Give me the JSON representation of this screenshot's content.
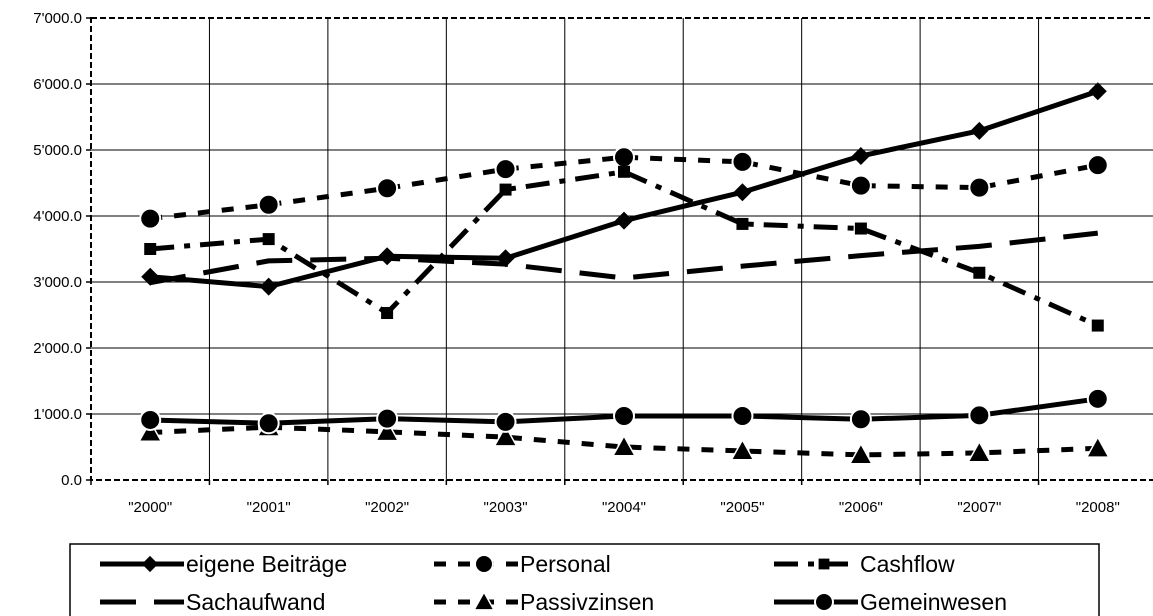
{
  "chart_data": {
    "type": "line",
    "title": "",
    "xlabel": "",
    "ylabel": "",
    "categories": [
      "\"2000\"",
      "\"2001\"",
      "\"2002\"",
      "\"2003\"",
      "\"2004\"",
      "\"2005\"",
      "\"2006\"",
      "\"2007\"",
      "\"2008\""
    ],
    "ylim": [
      0,
      7000
    ],
    "yticks": [
      0,
      1000,
      2000,
      3000,
      4000,
      5000,
      6000,
      7000
    ],
    "ytick_labels": [
      "0.0",
      "1'000.0",
      "2'000.0",
      "3'000.0",
      "4'000.0",
      "5'000.0",
      "6'000.0",
      "7'000.0"
    ],
    "grid": true,
    "legend_position": "bottom",
    "series": [
      {
        "name": "eigene Beiträge",
        "values": [
          3080,
          2930,
          3390,
          3360,
          3930,
          4360,
          4910,
          5290,
          5890
        ],
        "marker": "diamond",
        "dash": "solid",
        "color": "#000000"
      },
      {
        "name": "Personal",
        "values": [
          3960,
          4170,
          4420,
          4710,
          4890,
          4820,
          4460,
          4430,
          4770
        ],
        "marker": "circle",
        "dash": "short",
        "color": "#000000"
      },
      {
        "name": "Cashflow",
        "values": [
          3500,
          3650,
          2530,
          4400,
          4670,
          3880,
          3810,
          3140,
          2340
        ],
        "marker": "square",
        "dash": "dashdot",
        "color": "#000000"
      },
      {
        "name": "Sachaufwand",
        "values": [
          2990,
          3320,
          3360,
          3270,
          3060,
          3240,
          3400,
          3540,
          3740
        ],
        "marker": "none",
        "dash": "long",
        "color": "#000000"
      },
      {
        "name": "Passivzinsen",
        "values": [
          720,
          800,
          730,
          650,
          500,
          440,
          380,
          410,
          480
        ],
        "marker": "triangle",
        "dash": "short",
        "color": "#000000"
      },
      {
        "name": "Gemeinwesen",
        "values": [
          910,
          860,
          930,
          880,
          970,
          970,
          920,
          980,
          1230
        ],
        "marker": "circle",
        "dash": "solid",
        "color": "#000000"
      }
    ]
  }
}
